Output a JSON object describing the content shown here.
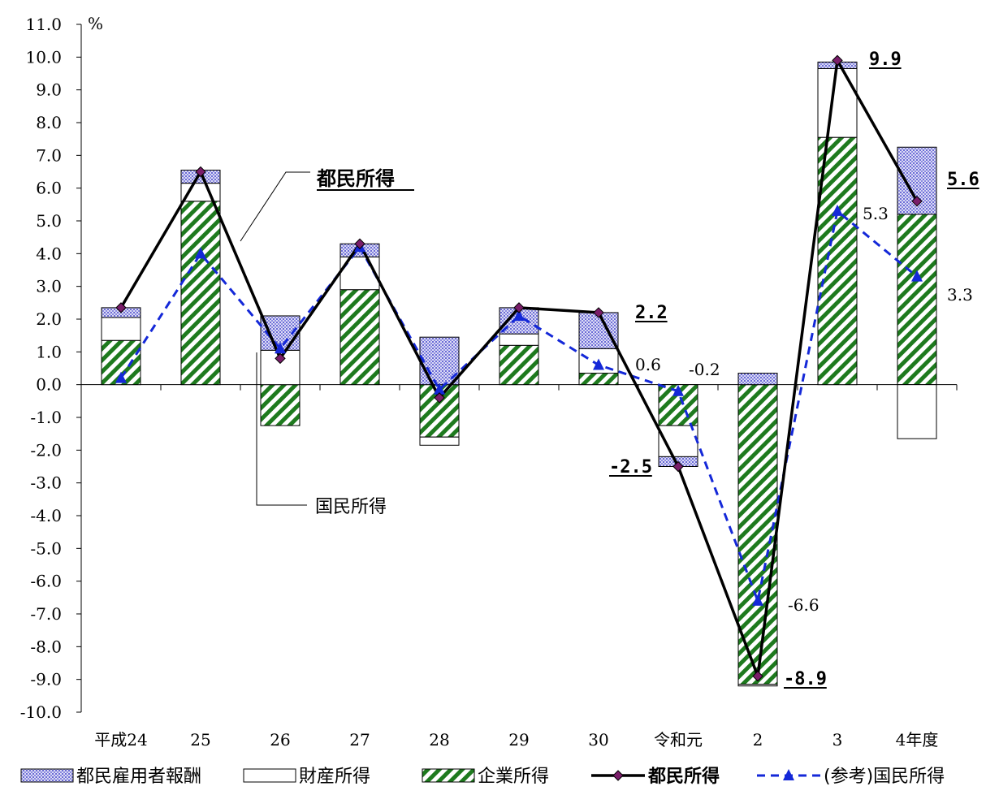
{
  "chart_data": {
    "type": "bar",
    "unit": "%",
    "categories": [
      "平成24",
      "25",
      "26",
      "27",
      "28",
      "29",
      "30",
      "令和元",
      "2",
      "3",
      "4年度"
    ],
    "ylim": [
      -10.0,
      11.0
    ],
    "yticks": [
      "11.0",
      "10.0",
      "9.0",
      "8.0",
      "7.0",
      "6.0",
      "5.0",
      "4.0",
      "3.0",
      "2.0",
      "1.0",
      "0.0",
      "-1.0",
      "-2.0",
      "-3.0",
      "-4.0",
      "-5.0",
      "-6.0",
      "-7.0",
      "-8.0",
      "-9.0",
      "-10.0"
    ],
    "bar_series": [
      {
        "name": "企業所得",
        "pattern": "green-hatch",
        "values": [
          1.35,
          5.6,
          -1.25,
          2.9,
          -1.6,
          1.2,
          0.35,
          -1.25,
          -9.15,
          7.55,
          5.2
        ]
      },
      {
        "name": "財産所得",
        "pattern": "white",
        "values": [
          0.7,
          0.55,
          1.05,
          1.0,
          -0.25,
          0.35,
          0.75,
          -0.95,
          -0.05,
          2.1,
          -1.65
        ]
      },
      {
        "name": "都民雇用者報酬",
        "pattern": "blue-dots",
        "values": [
          0.3,
          0.4,
          1.05,
          0.4,
          1.45,
          0.8,
          1.1,
          -0.3,
          0.35,
          0.2,
          2.05
        ]
      }
    ],
    "line_series": [
      {
        "name": "都民所得",
        "style": "black-solid-diamond",
        "values": [
          2.35,
          6.5,
          0.8,
          4.3,
          -0.4,
          2.35,
          2.2,
          -2.5,
          -8.9,
          9.9,
          5.6
        ]
      },
      {
        "name": "(参考)国民所得",
        "style": "blue-dashed-triangle",
        "values": [
          0.2,
          4.0,
          1.1,
          4.2,
          -0.15,
          2.1,
          0.6,
          -0.2,
          -6.6,
          5.3,
          3.3
        ]
      }
    ],
    "annotations": [
      {
        "text": "9.9",
        "bold": true
      },
      {
        "text": "5.6",
        "bold": true
      },
      {
        "text": "2.2",
        "bold": true
      },
      {
        "text": "-2.5",
        "bold": true
      },
      {
        "text": "-8.9",
        "bold": true
      },
      {
        "text": "5.3",
        "bold": false
      },
      {
        "text": "3.3",
        "bold": false
      },
      {
        "text": "0.6",
        "bold": false
      },
      {
        "text": "-0.2",
        "bold": false
      },
      {
        "text": "-6.6",
        "bold": false
      }
    ],
    "callouts": [
      {
        "text": "都民所得",
        "bold": true
      },
      {
        "text": "国民所得",
        "bold": false
      }
    ],
    "legend": [
      {
        "label": "都民雇用者報酬",
        "kind": "blue-dots"
      },
      {
        "label": "財産所得",
        "kind": "white"
      },
      {
        "label": "企業所得",
        "kind": "green-hatch"
      },
      {
        "label": "都民所得",
        "kind": "black-line"
      },
      {
        "label": "(参考)国民所得",
        "kind": "blue-dash-line"
      }
    ],
    "colors": {
      "hatch_green": "#1e7a1e",
      "dots_blue": "#6b6bd6",
      "dots_bg": "#dcdcf5",
      "line_black": "#000000",
      "marker_purple": "#7a1d6a",
      "line_blue": "#1428d8"
    }
  }
}
